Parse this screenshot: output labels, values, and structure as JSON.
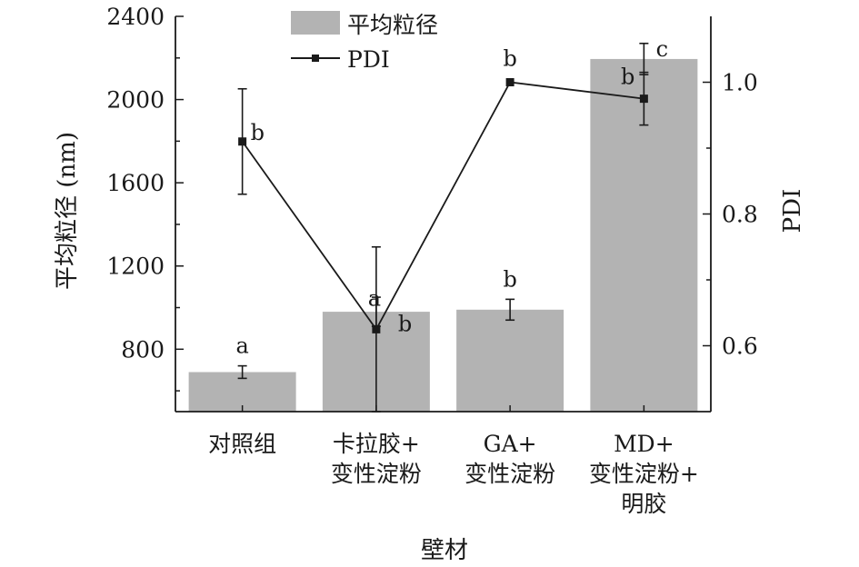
{
  "chart_data": {
    "type": "bar",
    "xlabel": "壁材",
    "ylabel_left": "平均粒径 (nm)",
    "ylabel_right": "PDI",
    "ylim_left": [
      500,
      2400
    ],
    "ylim_right": [
      0.5,
      1.1
    ],
    "yticks_left": [
      "2400",
      "2000",
      "1600",
      "1200",
      "800"
    ],
    "yticks_right": [
      "1.0",
      "0.8",
      "0.6"
    ],
    "categories": [
      [
        "对照组"
      ],
      [
        "卡拉胶+",
        "变性淀粉"
      ],
      [
        "GA+",
        "变性淀粉"
      ],
      [
        "MD+",
        "变性淀粉+",
        "明胶"
      ]
    ],
    "legend": {
      "bar_label": "平均粒径",
      "line_label": "PDI",
      "position": "top-center"
    },
    "series": [
      {
        "name": "平均粒径",
        "kind": "bar",
        "axis": "left",
        "values": [
          690,
          980,
          990,
          2195
        ],
        "error": [
          30,
          70,
          50,
          75
        ],
        "significance": [
          "a",
          "a",
          "b",
          "c"
        ],
        "color": "#b3b3b3"
      },
      {
        "name": "PDI",
        "kind": "line",
        "axis": "right",
        "values": [
          0.91,
          0.625,
          1.0,
          0.975
        ],
        "error": [
          0.08,
          0.125,
          0,
          0.04
        ],
        "significance": [
          "b",
          "b",
          "b",
          "b"
        ],
        "color": "#1a1a1a"
      }
    ],
    "grid": false
  }
}
